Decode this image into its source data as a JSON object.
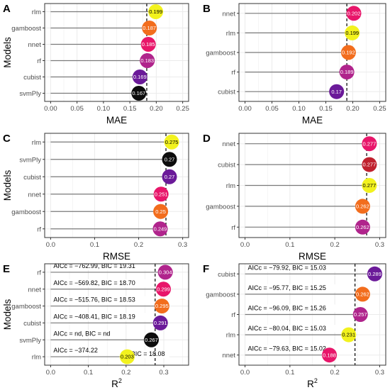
{
  "chart_data": [
    {
      "type": "lollipop",
      "panel_label": "A",
      "xlabel": "MAE",
      "ylabel": "Models",
      "xlim": [
        0,
        0.25
      ],
      "xticks": [
        "0.00",
        "0.05",
        "0.10",
        "0.15",
        "0.20",
        "0.25"
      ],
      "reference_line": 0.182,
      "categories": [
        "rlm",
        "gamboost",
        "nnet",
        "rf",
        "cubist",
        "svmPly"
      ],
      "values": [
        0.199,
        0.187,
        0.185,
        0.183,
        0.169,
        0.167
      ],
      "labels": [
        "0.199",
        "0.187",
        "0.185",
        "0.183",
        "0.169",
        "0.167"
      ],
      "colors": [
        "#f2f21e",
        "#f26d1d",
        "#e8166a",
        "#b0248c",
        "#6b1a99",
        "#0d0d0d"
      ]
    },
    {
      "type": "lollipop",
      "panel_label": "B",
      "xlabel": "MAE",
      "ylabel": "",
      "xlim": [
        0,
        0.25
      ],
      "xticks": [
        "0.00",
        "0.05",
        "0.10",
        "0.15",
        "0.20",
        "0.25"
      ],
      "reference_line": 0.189,
      "categories": [
        "nnet",
        "rlm",
        "gamboost",
        "rf",
        "cubist"
      ],
      "values": [
        0.202,
        0.199,
        0.192,
        0.189,
        0.17
      ],
      "labels": [
        "0.202",
        "0.199",
        "0.192",
        "0.189",
        "0.17"
      ],
      "colors": [
        "#e8166a",
        "#f2f21e",
        "#f26d1d",
        "#b0248c",
        "#6b1a99"
      ]
    },
    {
      "type": "lollipop",
      "panel_label": "C",
      "xlabel": "RMSE",
      "ylabel": "Models",
      "xlim": [
        0,
        0.3
      ],
      "xticks": [
        "0.0",
        "0.1",
        "0.2",
        "0.3"
      ],
      "reference_line": 0.262,
      "categories": [
        "rlm",
        "svmPly",
        "cubist",
        "nnet",
        "gamboost",
        "rf"
      ],
      "values": [
        0.275,
        0.27,
        0.27,
        0.251,
        0.25,
        0.249
      ],
      "labels": [
        "0.275",
        "0.27",
        "0.27",
        "0.251",
        "0.25",
        "0.249"
      ],
      "colors": [
        "#f2f21e",
        "#0d0d0d",
        "#6b1a99",
        "#e8166a",
        "#f26d1d",
        "#b0248c"
      ]
    },
    {
      "type": "lollipop",
      "panel_label": "D",
      "xlabel": "RMSE",
      "ylabel": "",
      "xlim": [
        0,
        0.3
      ],
      "xticks": [
        "0.0",
        "0.1",
        "0.2",
        "0.3"
      ],
      "reference_line": 0.271,
      "categories": [
        "nnet",
        "cubist",
        "rlm",
        "gamboost",
        "rf"
      ],
      "values": [
        0.277,
        0.277,
        0.277,
        0.262,
        0.262
      ],
      "labels": [
        "0.277",
        "0.277",
        "0.277",
        "0.262",
        "0.262"
      ],
      "colors": [
        "#e8166a",
        "#c0212e",
        "#f2f21e",
        "#f26d1d",
        "#b0248c"
      ]
    },
    {
      "type": "lollipop",
      "panel_label": "E",
      "xlabel": "R",
      "xlabel_sup": "2",
      "ylabel": "Models",
      "xlim": [
        0,
        0.35
      ],
      "xticks": [
        "0.0",
        "0.1",
        "0.2",
        "0.3"
      ],
      "reference_line": 0.277,
      "categories": [
        "rf",
        "nnet",
        "gamboost",
        "cubist",
        "svmPly",
        "rlm"
      ],
      "values": [
        0.304,
        0.299,
        0.295,
        0.291,
        0.267,
        0.203
      ],
      "labels": [
        "0.304",
        "0.299",
        "0.295",
        "0.291",
        "0.267",
        "0.203"
      ],
      "colors": [
        "#b0248c",
        "#e8166a",
        "#f26d1d",
        "#6b1a99",
        "#0d0d0d",
        "#f2f21e"
      ],
      "annotations": [
        "AICc = −762.99, BIC = 19.31",
        "AICc = −569.82, BIC = 18.70",
        "AICc = −515.76, BIC = 18.53",
        "AICc = −408.41, BIC = 18.19",
        "AICc = nd, BIC = nd",
        "AICc = −374.22"
      ],
      "extra_annotations": [
        {
          "row": 5,
          "text": "BIC = 18.08"
        }
      ]
    },
    {
      "type": "lollipop",
      "panel_label": "F",
      "xlabel": "R",
      "xlabel_sup": "2",
      "ylabel": "",
      "xlim": [
        0,
        0.3
      ],
      "xticks": [
        "0.0",
        "0.1",
        "0.2",
        "0.3"
      ],
      "reference_line": 0.245,
      "categories": [
        "cubist",
        "gamboost",
        "rf",
        "rlm",
        "nnet"
      ],
      "values": [
        0.289,
        0.262,
        0.257,
        0.231,
        0.188
      ],
      "labels": [
        "0.289",
        "0.262",
        "0.257",
        "0.231",
        "0.188"
      ],
      "colors": [
        "#6b1a99",
        "#f26d1d",
        "#b0248c",
        "#f2f21e",
        "#e8166a"
      ],
      "annotations": [
        "AICc = −79.92, BIC = 15.03",
        "AICc = −95.77, BIC = 15.25",
        "AICc = −96.09, BIC = 15.26",
        "AICc = −80.04, BIC = 15.03",
        "AICc = −79.63, BIC = 15.02"
      ]
    }
  ]
}
